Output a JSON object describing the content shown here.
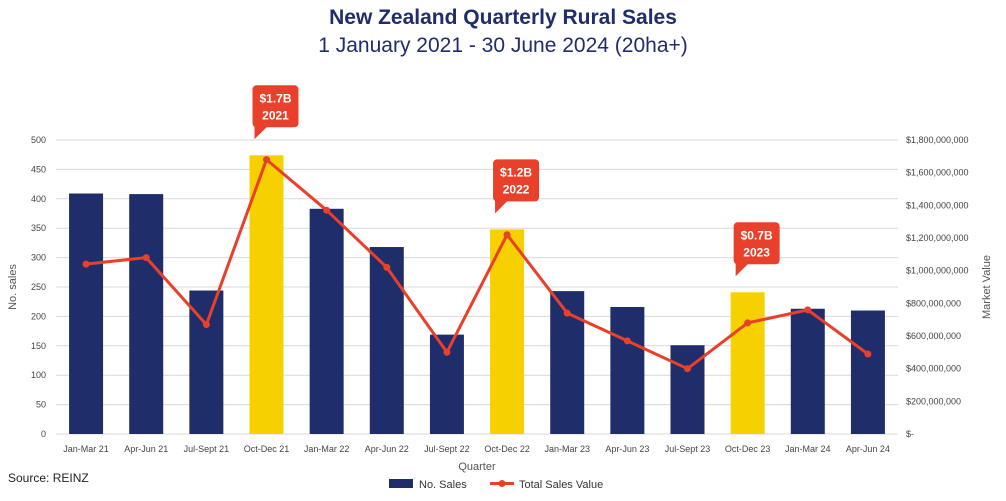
{
  "chart_data": {
    "type": "bar",
    "title": "New Zealand Quarterly Rural Sales",
    "subtitle": "1 January 2021 - 30 June 2024 (20ha+)",
    "xlabel": "Quarter",
    "ylabel": "No. sales",
    "y2label": "Market Value",
    "categories": [
      "Jan-Mar 21",
      "Apr-Jun 21",
      "Jul-Sept 21",
      "Oct-Dec 21",
      "Jan-Mar 22",
      "Apr-Jun 22",
      "Jul-Sept 22",
      "Oct-Dec 22",
      "Jan-Mar 23",
      "Apr-Jun 23",
      "Jul-Sept 23",
      "Oct-Dec 23",
      "Jan-Mar 24",
      "Apr-Jun 24"
    ],
    "ylim": [
      0,
      500
    ],
    "y_ticks": [
      0,
      50,
      100,
      150,
      200,
      250,
      300,
      350,
      400,
      450,
      500
    ],
    "y2lim": [
      0,
      1800000000
    ],
    "y2_ticks": [
      0,
      200000000,
      400000000,
      600000000,
      800000000,
      1000000000,
      1200000000,
      1400000000,
      1600000000,
      1800000000
    ],
    "y2_tick_labels": [
      "$-",
      "$200,000,000",
      "$400,000,000",
      "$600,000,000",
      "$800,000,000",
      "$1,000,000,000",
      "$1,200,000,000",
      "$1,400,000,000",
      "$1,600,000,000",
      "$1,800,000,000"
    ],
    "highlight_indices": [
      3,
      7,
      11
    ],
    "series": [
      {
        "name": "No. Sales",
        "kind": "bar",
        "color": "#1f2d6b",
        "highlight_color": "#f7d000",
        "values": [
          409,
          408,
          244,
          474,
          383,
          318,
          169,
          348,
          243,
          216,
          151,
          241,
          213,
          210
        ]
      },
      {
        "name": "Total Sales Value",
        "kind": "line",
        "axis": "y2",
        "color": "#e8402a",
        "values": [
          1040000000,
          1080000000,
          670000000,
          1680000000,
          1370000000,
          1020000000,
          500000000,
          1220000000,
          740000000,
          570000000,
          400000000,
          680000000,
          760000000,
          490000000
        ]
      }
    ],
    "annotations": [
      {
        "index": 3,
        "line1": "$1.7B",
        "line2": "2021"
      },
      {
        "index": 7,
        "line1": "$1.2B",
        "line2": "2022"
      },
      {
        "index": 11,
        "line1": "$0.7B",
        "line2": "2023"
      }
    ]
  },
  "source": "Source: REINZ"
}
